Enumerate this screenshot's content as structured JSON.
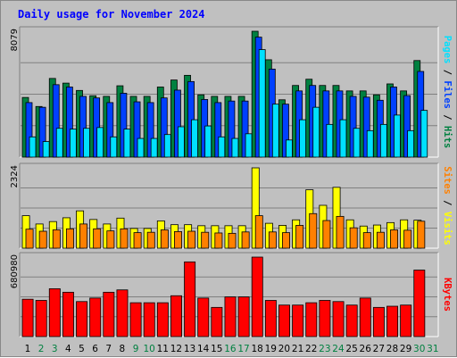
{
  "chart_data": {
    "type": "bar",
    "title": "Daily usage for November 2024",
    "categories": [
      "1",
      "2",
      "3",
      "4",
      "5",
      "6",
      "7",
      "8",
      "9",
      "10",
      "11",
      "12",
      "13",
      "14",
      "15",
      "16",
      "17",
      "18",
      "19",
      "20",
      "21",
      "22",
      "23",
      "24",
      "25",
      "26",
      "27",
      "28",
      "29",
      "30",
      "31"
    ],
    "weekend_days": [
      "2",
      "3",
      "9",
      "10",
      "16",
      "17",
      "23",
      "24",
      "30",
      "31"
    ],
    "grid": true,
    "panels": [
      {
        "id": "pages-files-hits",
        "ylabel_parts": [
          "Pages",
          "Files",
          "Hits"
        ],
        "ylabel_separator": " / ",
        "max_label": "8079",
        "ylim": [
          0,
          8079
        ],
        "series": [
          {
            "name": "Hits",
            "color": "#008040",
            "values": [
              3830,
              3250,
              5050,
              4750,
              4280,
              3940,
              3900,
              4580,
              3900,
              3900,
              4500,
              4950,
              5250,
              4000,
              3900,
              3900,
              3900,
              8079,
              6250,
              3680,
              4600,
              5000,
              4600,
              4600,
              4250,
              4250,
              4000,
              4700,
              4250,
              6200
            ]
          },
          {
            "name": "Files",
            "color": "#0040ff",
            "values": [
              3500,
              3200,
              4650,
              4500,
              3900,
              3800,
              3500,
              4100,
              3550,
              3500,
              3800,
              4300,
              4850,
              3700,
              3500,
              3600,
              3600,
              7700,
              5650,
              3400,
              4250,
              4600,
              4250,
              4250,
              3900,
              3850,
              3650,
              4500,
              3950,
              5500
            ]
          },
          {
            "name": "Pages",
            "color": "#00e0ff",
            "values": [
              1300,
              1000,
              1850,
              1800,
              1850,
              1900,
              1300,
              1800,
              1200,
              1200,
              1450,
              1950,
              2400,
              2000,
              1300,
              1200,
              1500,
              6900,
              3400,
              1100,
              2400,
              3200,
              2100,
              2400,
              1850,
              1700,
              2100,
              2700,
              1700,
              3000
            ]
          }
        ]
      },
      {
        "id": "visits-sites",
        "ylabel_parts": [
          "Sites",
          "Visits"
        ],
        "ylabel_separator": " / ",
        "max_label": "2324",
        "ylim": [
          0,
          2324
        ],
        "series": [
          {
            "name": "Visits",
            "color": "#ffff00",
            "values": [
              940,
              700,
              770,
              880,
              1080,
              830,
              700,
              870,
              570,
              570,
              790,
              680,
              680,
              650,
              650,
              650,
              650,
              2324,
              720,
              660,
              820,
              1690,
              1240,
              1760,
              820,
              640,
              670,
              740,
              820,
              810
            ]
          },
          {
            "name": "Sites",
            "color": "#ff8000",
            "values": [
              550,
              490,
              530,
              560,
              700,
              560,
              500,
              560,
              450,
              460,
              530,
              480,
              490,
              460,
              440,
              430,
              470,
              940,
              470,
              450,
              660,
              1000,
              800,
              920,
              590,
              450,
              460,
              530,
              520,
              780
            ]
          }
        ]
      },
      {
        "id": "kbytes",
        "ylabel_parts": [
          "KBytes"
        ],
        "ylabel_separator": "",
        "max_label": "680980",
        "ylim": [
          0,
          680980
        ],
        "series": [
          {
            "name": "KBytes",
            "color": "#ff0000",
            "values": [
              320000,
              310000,
              410000,
              380000,
              300000,
              330000,
              380000,
              400000,
              290000,
              290000,
              290000,
              350000,
              640000,
              330000,
              250000,
              340000,
              340000,
              680980,
              310000,
              270000,
              270000,
              290000,
              310000,
              300000,
              270000,
              330000,
              250000,
              260000,
              270000,
              570000
            ]
          }
        ]
      }
    ]
  }
}
